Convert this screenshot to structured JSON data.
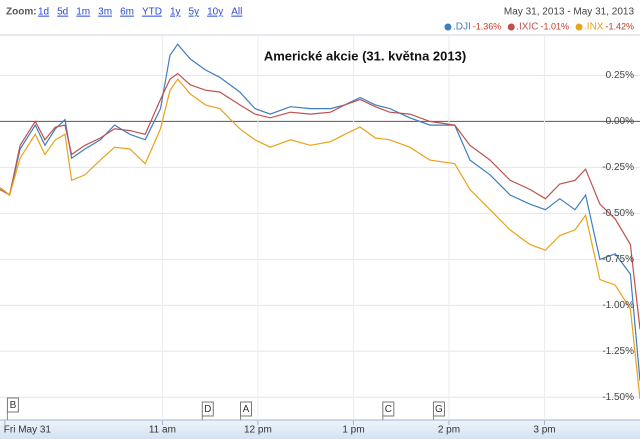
{
  "chart_data": {
    "type": "line",
    "title": "Americké akcie (31. května 2013)",
    "zoom_label": "Zoom:",
    "zoom_options": [
      "1d",
      "5d",
      "1m",
      "3m",
      "6m",
      "YTD",
      "1y",
      "5y",
      "10y",
      "All"
    ],
    "date_range": "May 31, 2013  -  May 31, 2013",
    "x": [
      9.3,
      9.4,
      9.51,
      9.67,
      9.77,
      9.88,
      9.98,
      10.05,
      10.19,
      10.35,
      10.5,
      10.66,
      10.82,
      10.98,
      11.08,
      11.16,
      11.29,
      11.45,
      11.6,
      11.81,
      11.97,
      12.13,
      12.34,
      12.55,
      12.76,
      12.91,
      13.07,
      13.23,
      13.38,
      13.59,
      13.8,
      14.06,
      14.22,
      14.43,
      14.64,
      14.85,
      15.01,
      15.16,
      15.32,
      15.43,
      15.58,
      15.74,
      15.9,
      16.0
    ],
    "series": [
      {
        "name": ".DJI",
        "change": "-1.36%",
        "color": "#3f7dc0",
        "values": [
          -0.36,
          -0.4,
          -0.15,
          -0.02,
          -0.13,
          -0.04,
          0.01,
          -0.2,
          -0.15,
          -0.1,
          -0.02,
          -0.07,
          -0.1,
          0.07,
          0.36,
          0.42,
          0.34,
          0.28,
          0.24,
          0.16,
          0.07,
          0.04,
          0.08,
          0.07,
          0.07,
          0.09,
          0.13,
          0.09,
          0.07,
          0.02,
          -0.02,
          -0.02,
          -0.21,
          -0.29,
          -0.4,
          -0.45,
          -0.48,
          -0.42,
          -0.48,
          -0.4,
          -0.75,
          -0.72,
          -0.83,
          -1.41
        ]
      },
      {
        "name": ".IXIC",
        "change": "-1.01%",
        "color": "#c0504d",
        "values": [
          -0.37,
          -0.4,
          -0.13,
          0,
          -0.1,
          -0.03,
          -0.02,
          -0.18,
          -0.13,
          -0.09,
          -0.04,
          -0.05,
          -0.07,
          0.12,
          0.23,
          0.26,
          0.2,
          0.17,
          0.16,
          0.09,
          0.04,
          0.02,
          0.05,
          0.04,
          0.05,
          0.09,
          0.12,
          0.08,
          0.05,
          0.04,
          0,
          -0.02,
          -0.13,
          -0.21,
          -0.32,
          -0.37,
          -0.42,
          -0.34,
          -0.32,
          -0.26,
          -0.45,
          -0.53,
          -0.67,
          -1.13
        ]
      },
      {
        "name": ".INX",
        "change": "-1.42%",
        "color": "#e8a317",
        "values": [
          -0.36,
          -0.4,
          -0.2,
          -0.07,
          -0.18,
          -0.1,
          -0.07,
          -0.32,
          -0.29,
          -0.21,
          -0.14,
          -0.15,
          -0.23,
          -0.04,
          0.17,
          0.23,
          0.15,
          0.09,
          0.07,
          -0.04,
          -0.1,
          -0.14,
          -0.1,
          -0.13,
          -0.11,
          -0.07,
          -0.03,
          -0.09,
          -0.1,
          -0.14,
          -0.21,
          -0.23,
          -0.37,
          -0.48,
          -0.59,
          -0.67,
          -0.7,
          -0.62,
          -0.59,
          -0.51,
          -0.86,
          -0.89,
          -1.02,
          -1.51
        ]
      }
    ],
    "xlim": [
      9.3,
      16.0
    ],
    "xticks": [
      {
        "value": 9.35,
        "label": "Fri May 31"
      },
      {
        "value": 11,
        "label": "11 am"
      },
      {
        "value": 12,
        "label": "12 pm"
      },
      {
        "value": 13,
        "label": "1 pm"
      },
      {
        "value": 14,
        "label": "2 pm"
      },
      {
        "value": 15,
        "label": "3 pm"
      }
    ],
    "ylim": [
      -1.58,
      0.47
    ],
    "yticks": [
      {
        "value": 0.25,
        "label": "0.25%"
      },
      {
        "value": 0,
        "label": "0.00%"
      },
      {
        "value": -0.25,
        "label": "-0.25%"
      },
      {
        "value": -0.5,
        "label": "-0.50%"
      },
      {
        "value": -0.75,
        "label": "-0.75%"
      },
      {
        "value": -1,
        "label": "-1.00%"
      },
      {
        "value": -1.25,
        "label": "-1.25%"
      },
      {
        "value": -1.5,
        "label": "-1.50%"
      }
    ],
    "annotations": [
      {
        "label": "B",
        "x": 9.43
      },
      {
        "label": "D",
        "x": 11.47
      },
      {
        "label": "A",
        "x": 11.87
      },
      {
        "label": "C",
        "x": 13.36
      },
      {
        "label": "G",
        "x": 13.89
      }
    ],
    "grid": true,
    "legend": "top-right"
  }
}
